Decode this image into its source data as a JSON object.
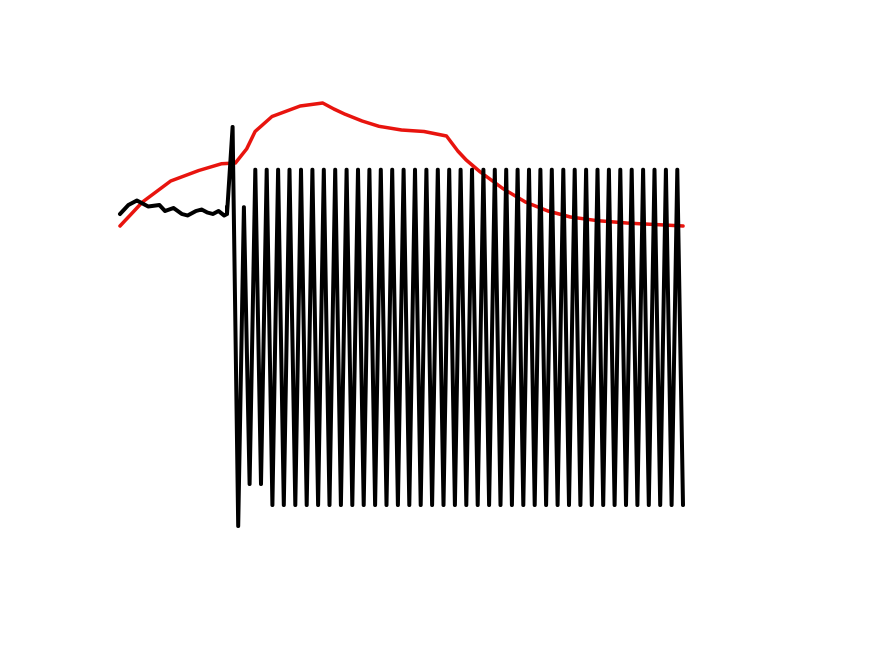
{
  "chart_data": {
    "type": "line",
    "title": "",
    "xlabel": "",
    "ylabel": "",
    "axes_visible": false,
    "grid": false,
    "legend": "none",
    "xlim": [
      0,
      1
    ],
    "ylim": [
      -1,
      1
    ],
    "series": [
      {
        "color": "#e8140e",
        "stroke_width": 3.5,
        "x": [
          0.0,
          0.04,
          0.09,
          0.14,
          0.18,
          0.205,
          0.225,
          0.24,
          0.27,
          0.32,
          0.36,
          0.38,
          0.4,
          0.43,
          0.46,
          0.5,
          0.54,
          0.58,
          0.6,
          0.615,
          0.64,
          0.68,
          0.72,
          0.76,
          0.8,
          0.85,
          0.9,
          0.95,
          1.0
        ],
        "y": [
          0.0,
          0.16,
          0.3,
          0.37,
          0.415,
          0.42,
          0.515,
          0.63,
          0.73,
          0.8,
          0.82,
          0.78,
          0.745,
          0.7,
          0.665,
          0.64,
          0.63,
          0.6,
          0.5,
          0.44,
          0.36,
          0.25,
          0.16,
          0.1,
          0.06,
          0.035,
          0.02,
          0.01,
          0.0
        ]
      },
      {
        "color": "#000000",
        "stroke_width": 4,
        "baseline": {
          "x": [
            0.0,
            0.015,
            0.03,
            0.05,
            0.07,
            0.08,
            0.095,
            0.11,
            0.12,
            0.135,
            0.145,
            0.155,
            0.165,
            0.175,
            0.185,
            0.19,
            0.19
          ],
          "y": [
            0.08,
            0.14,
            0.17,
            0.13,
            0.14,
            0.1,
            0.12,
            0.08,
            0.07,
            0.1,
            0.11,
            0.09,
            0.08,
            0.1,
            0.07,
            0.08,
            0.13
          ]
        },
        "spike": {
          "x": [
            0.19,
            0.19,
            0.2,
            0.21
          ],
          "y": [
            0.13,
            0.08,
            0.66,
            -1.0
          ]
        },
        "oscillation": {
          "x_start": 0.21,
          "x_end": 1.0,
          "cycles": 39,
          "first_peak": 0.125,
          "peaks": 0.375,
          "troughts_start": -0.86,
          "troughs": -0.93
        }
      }
    ]
  }
}
